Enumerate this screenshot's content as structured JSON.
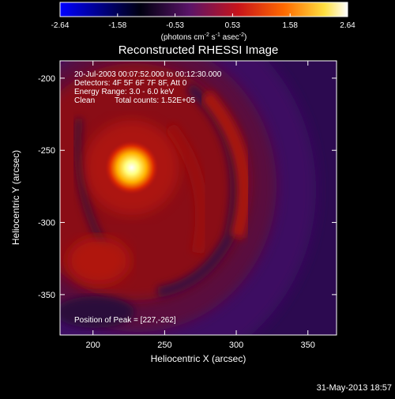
{
  "chart_data": {
    "type": "heatmap",
    "title": "Reconstructed RHESSI Image",
    "xlabel": "Heliocentric X (arcsec)",
    "ylabel": "Heliocentric Y (arcsec)",
    "xlim": [
      177,
      370
    ],
    "ylim": [
      -378,
      -188
    ],
    "x_ticks": [
      200,
      250,
      300,
      350
    ],
    "y_ticks": [
      -200,
      -250,
      -300,
      -350
    ],
    "colorbar": {
      "ticks": [
        "-2.64",
        "-1.58",
        "-0.53",
        "0.53",
        "1.58",
        "2.64"
      ],
      "range": [
        -2.64,
        2.64
      ],
      "units_base": "(photons cm",
      "units_exp1": "-2",
      "units_mid": " s",
      "units_exp2": "-1",
      "units_end": " asec",
      "units_exp3": "-2",
      "units_close": ")",
      "colormap": [
        "#0000ff",
        "#000000",
        "#6a1a7a",
        "#d41a1a",
        "#ff7a00",
        "#ffff66",
        "#ffffff"
      ]
    },
    "peak": [
      227,
      -262
    ],
    "annotations": {
      "time_range": "20-Jul-2003 00:07:52.000 to 00:12:30.000",
      "detectors": "Detectors: 4F 5F 6F 7F 8F, Att 0",
      "energy": "Energy Range: 3.0 - 6.0 keV",
      "method": "Clean",
      "counts": "Total counts: 1.52E+05",
      "peak_label": "Position of Peak = [227,-262]"
    }
  },
  "footer": {
    "timestamp": "31-May-2013 18:57"
  }
}
